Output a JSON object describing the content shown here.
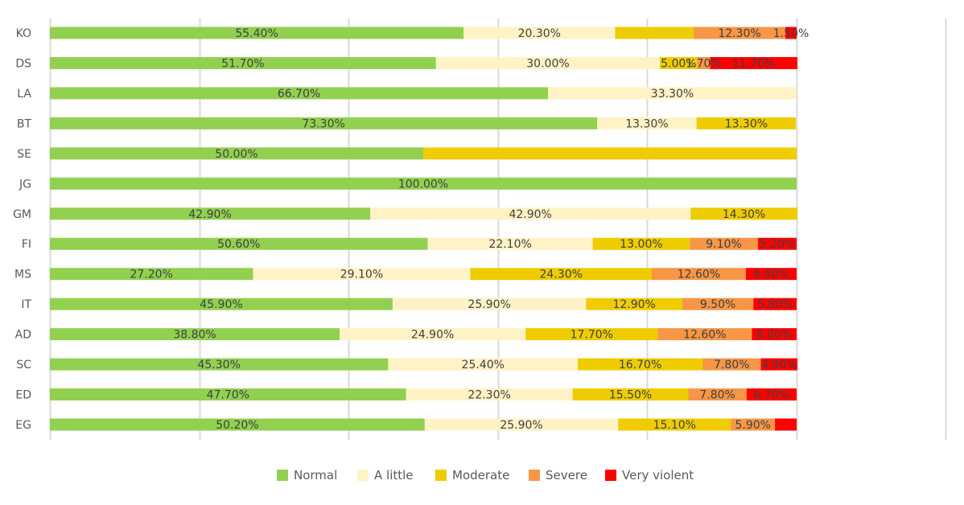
{
  "chart_data": {
    "type": "bar",
    "orientation": "horizontal",
    "stacked": "percent",
    "title": "",
    "xlabel": "",
    "ylabel": "",
    "xlim": [
      0,
      100
    ],
    "grid": true,
    "legend_position": "bottom",
    "categories": [
      "KO",
      "DS",
      "LA",
      "BT",
      "SE",
      "JG",
      "GM",
      "FI",
      "MS",
      "IT",
      "AD",
      "SC",
      "ED",
      "EG"
    ],
    "series": [
      {
        "name": "Normal",
        "color": "#92d050",
        "values": [
          55.4,
          51.7,
          66.7,
          73.3,
          50.0,
          100.0,
          42.9,
          50.6,
          27.2,
          45.9,
          38.8,
          45.3,
          47.7,
          50.2
        ],
        "labels": [
          "55.40%",
          "51.70%",
          "66.70%",
          "73.30%",
          "50.00%",
          "100.00%",
          "42.90%",
          "50.60%",
          "27.20%",
          "45.90%",
          "38.80%",
          "45.30%",
          "47.70%",
          "50.20%"
        ]
      },
      {
        "name": "A little",
        "color": "#fff2c5",
        "values": [
          20.3,
          30.0,
          33.3,
          13.3,
          0,
          0,
          42.9,
          22.1,
          29.1,
          25.9,
          24.9,
          25.4,
          22.3,
          25.9
        ],
        "labels": [
          "20.30%",
          "30.00%",
          "33.30%",
          "13.30%",
          "",
          "",
          "42.90%",
          "22.10%",
          "29.10%",
          "25.90%",
          "24.90%",
          "25.40%",
          "22.30%",
          "25.90%"
        ]
      },
      {
        "name": "Moderate",
        "color": "#eecc00",
        "values": [
          10.5,
          5.0,
          0,
          13.3,
          50.0,
          0,
          14.3,
          13.0,
          24.3,
          12.9,
          17.7,
          16.7,
          15.5,
          15.1
        ],
        "labels": [
          "",
          "5.00%",
          "",
          "13.30%",
          "",
          "",
          "14.30%",
          "13.00%",
          "24.30%",
          "12.90%",
          "17.70%",
          "16.70%",
          "15.50%",
          "15.10%"
        ]
      },
      {
        "name": "Severe",
        "color": "#f79646",
        "values": [
          12.3,
          1.7,
          0,
          0,
          0,
          0,
          0,
          9.1,
          12.6,
          9.5,
          12.6,
          7.8,
          7.8,
          5.9
        ],
        "labels": [
          "12.30%",
          "1.70%",
          "",
          "",
          "",
          "",
          "",
          "9.10%",
          "12.60%",
          "9.50%",
          "12.60%",
          "7.80%",
          "7.80%",
          "5.90%"
        ]
      },
      {
        "name": "Very violent",
        "color": "#ff0000",
        "values": [
          1.5,
          11.7,
          0,
          0,
          0,
          0,
          0,
          5.2,
          6.8,
          5.8,
          6.0,
          4.9,
          6.7,
          2.9
        ],
        "labels": [
          "1.50%",
          "11.70%",
          "",
          "",
          "",
          "",
          "",
          "5.20%",
          "6.80%",
          "5.80%",
          "6.00%",
          "4.90%",
          "6.70%",
          ""
        ]
      }
    ]
  }
}
